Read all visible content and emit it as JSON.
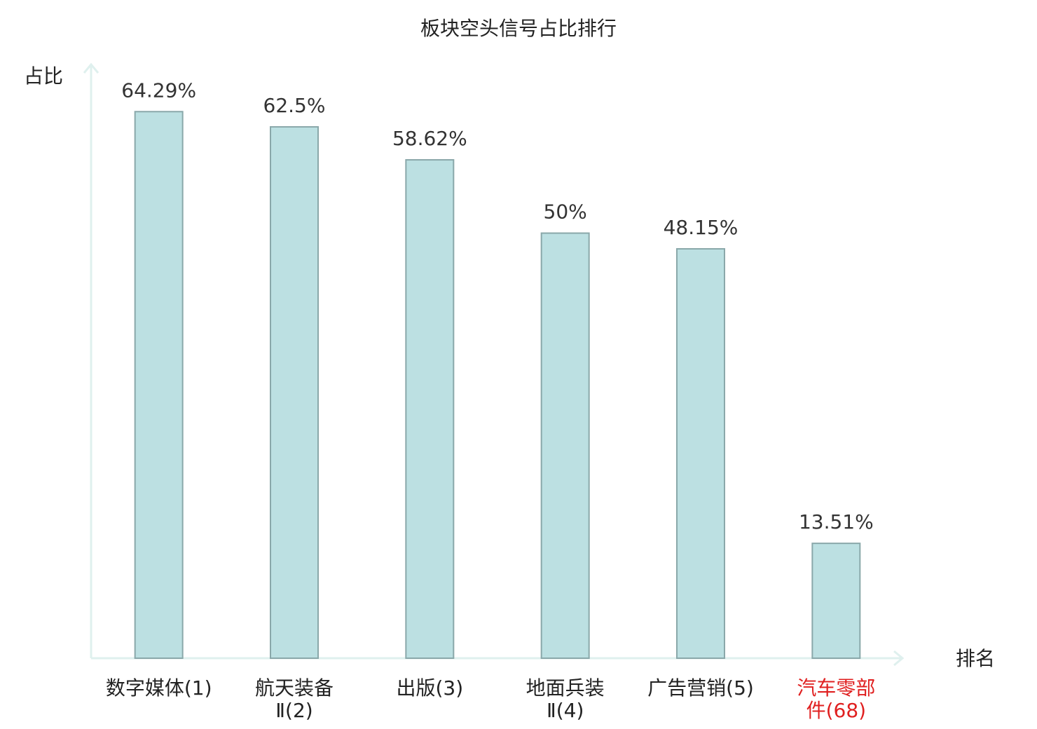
{
  "chart_data": {
    "type": "bar",
    "title": "板块空头信号占比排行",
    "y_label": "占比",
    "x_label": "排名",
    "categories": [
      "数字媒体(1)",
      "航天装备\nⅡ(2)",
      "出版(3)",
      "地面兵装\nⅡ(4)",
      "广告营销(5)",
      "汽车零部\n件(68)"
    ],
    "values": [
      64.29,
      62.5,
      58.62,
      50,
      48.15,
      13.51
    ],
    "value_labels": [
      "64.29%",
      "62.5%",
      "58.62%",
      "50%",
      "48.15%",
      "13.51%"
    ],
    "color": "#bce0e2",
    "edge_color": "#8aa8aa",
    "label_colors": [
      "#222222",
      "#222222",
      "#222222",
      "#222222",
      "#222222",
      "#e02020"
    ],
    "ylim": [
      0,
      70
    ]
  }
}
